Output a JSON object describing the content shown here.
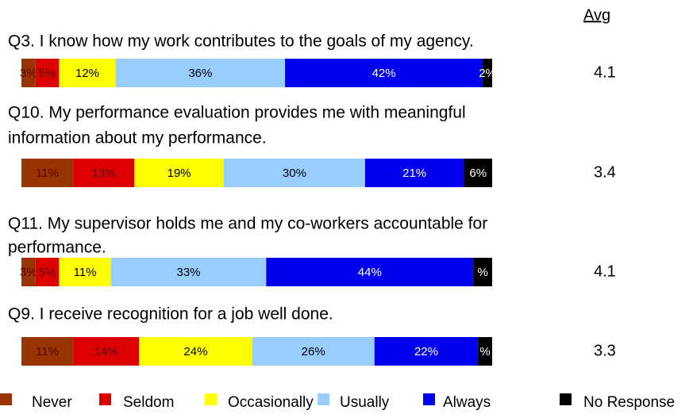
{
  "chart_data": {
    "type": "stacked_bar_horizontal",
    "avg_header": "Avg",
    "categories": [
      [
        "Q3. I know how my work contributes to the goals of my agency."
      ],
      [
        "Q10. My performance evaluation provides me with meaningful",
        "information about my performance."
      ],
      [
        "Q11. My supervisor holds me and my co-workers accountable for",
        "performance."
      ],
      [
        "Q9. I receive recognition for a job well done."
      ]
    ],
    "averages": [
      4.1,
      3.4,
      4.1,
      3.3
    ],
    "xlim": [
      0,
      100
    ],
    "series": [
      {
        "name": "Never",
        "color": "#993300",
        "values": [
          3,
          11,
          3,
          11
        ],
        "value_labels": [
          "3%",
          "11%",
          "3%",
          "11%"
        ]
      },
      {
        "name": "Seldom",
        "color": "#dd0000",
        "values": [
          5,
          13,
          5,
          14
        ],
        "value_labels": [
          "5%",
          "13%",
          "5%",
          "14%"
        ]
      },
      {
        "name": "Occasionally",
        "color": "#ffff00",
        "values": [
          12,
          19,
          11,
          24
        ],
        "value_labels": [
          "12%",
          "19%",
          "11%",
          "24%"
        ]
      },
      {
        "name": "Usually",
        "color": "#99ccff",
        "values": [
          36,
          30,
          33,
          26
        ],
        "value_labels": [
          "36%",
          "30%",
          "33%",
          "26%"
        ]
      },
      {
        "name": "Always",
        "color": "#0000ee",
        "values": [
          42,
          21,
          44,
          22
        ],
        "value_labels": [
          "42%",
          "21%",
          "44%",
          "22%"
        ]
      },
      {
        "name": "No Response",
        "color": "#000000",
        "values": [
          2,
          6,
          4,
          3
        ],
        "value_labels": [
          "2%",
          "6%",
          "%",
          "%"
        ]
      }
    ],
    "legend": "bottom"
  }
}
